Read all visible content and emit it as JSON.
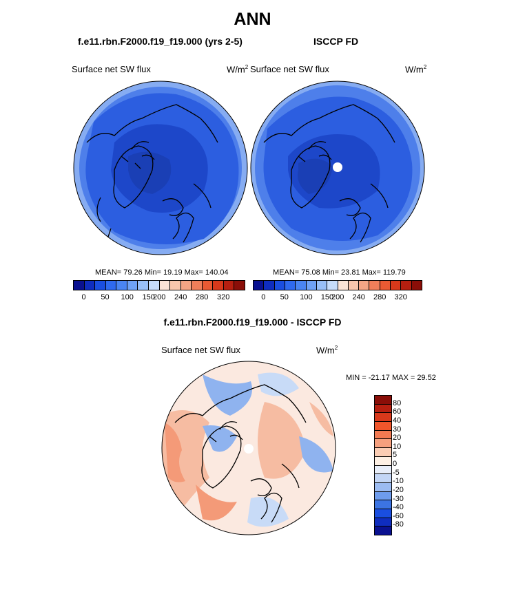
{
  "title": "ANN",
  "panels": {
    "left_title": "f.e11.rbn.F2000.f19_f19.000 (yrs 2-5)",
    "right_title": "ISCCP FD",
    "variable": "Surface net SW flux",
    "units_base": "W/m",
    "units_exp": "2",
    "left_stats": "MEAN=  79.26  Min=  19.19  Max= 140.04",
    "right_stats": "MEAN=  75.08  Min=  23.81  Max= 119.79"
  },
  "diff": {
    "title": "f.e11.rbn.F2000.f19_f19.000 - ISCCP FD",
    "variable": "Surface net SW flux",
    "stats": "MIN = -21.17 MAX =  29.52"
  },
  "colorbar_top": {
    "labels": [
      "0",
      "50",
      "100",
      "150",
      "200",
      "240",
      "280",
      "320"
    ],
    "colors": [
      "#0a1190",
      "#0f2dbf",
      "#1a4ee0",
      "#2f6aef",
      "#4a85f2",
      "#6fa2f5",
      "#98bff7",
      "#c6dcfa",
      "#fbe4d6",
      "#f8c6ad",
      "#f4a585",
      "#f07f5a",
      "#ea5a33",
      "#d8391b",
      "#b61f10",
      "#8a0e08"
    ]
  },
  "colorbar_diff": {
    "labels": [
      "80",
      "60",
      "40",
      "30",
      "20",
      "10",
      "5",
      "0",
      "-5",
      "-10",
      "-20",
      "-30",
      "-40",
      "-60",
      "-80"
    ],
    "colors": [
      "#8a0e08",
      "#b61f10",
      "#d8391b",
      "#f0562b",
      "#f27a52",
      "#f6a07e",
      "#fbcdb4",
      "#fdf0e4",
      "#e8eef9",
      "#c3d6f6",
      "#9cbcf2",
      "#6e9ced",
      "#3c74e3",
      "#1a4ee0",
      "#0f2dbf",
      "#0a1190"
    ]
  },
  "map_colors": {
    "deep": "#1d47c9",
    "mid": "#2c5ee0",
    "light": "#4e7fea",
    "edge": "#86acf2",
    "diff_pos": "#f6bca2",
    "diff_pos2": "#f49a78",
    "diff_neg": "#c8dbf7",
    "diff_neg2": "#8fb3ef",
    "diff_zero": "#fbe9e0"
  }
}
